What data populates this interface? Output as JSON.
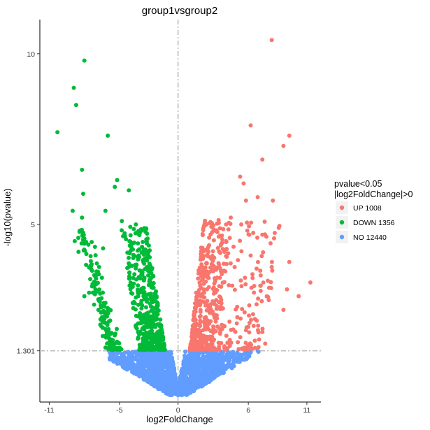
{
  "chart_data": {
    "type": "scatter",
    "title": "group1vsgroup2",
    "xlabel": "log2FoldChange",
    "ylabel": "-log10(pvalue)",
    "xlim": [
      -11.8,
      12.2
    ],
    "ylim": [
      -0.2,
      11.0
    ],
    "x_ticks": [
      -11,
      -5,
      0,
      6,
      11
    ],
    "y_ticks": [
      1.301,
      5,
      10
    ],
    "y_tick_labels": [
      "1.301",
      "5",
      "10"
    ],
    "threshold_lines": {
      "x": 0,
      "y": 1.301,
      "style": "dashdot",
      "color": "#bdbdbd"
    },
    "grid": false,
    "legend": {
      "title_line1": "pvalue<0.05",
      "title_line2": "|log2FoldChange|>0",
      "placement": "right",
      "entries": [
        {
          "label": "UP 1008",
          "color": "#F8766D"
        },
        {
          "label": "DOWN 1356",
          "color": "#00BA38"
        },
        {
          "label": "NO 12440",
          "color": "#619CFF"
        }
      ]
    },
    "series": [
      {
        "name": "UP 1008",
        "color": "#F8766D",
        "counts": 1008,
        "highlight_points": [
          [
            8.0,
            10.4
          ],
          [
            6.2,
            7.9
          ],
          [
            9.5,
            7.6
          ],
          [
            9.0,
            7.3
          ],
          [
            7.2,
            6.9
          ],
          [
            5.3,
            6.4
          ],
          [
            5.6,
            6.2
          ],
          [
            6.8,
            5.8
          ],
          [
            8.1,
            5.7
          ],
          [
            4.1,
            5.0
          ],
          [
            4.5,
            5.2
          ],
          [
            5.4,
            5.0
          ],
          [
            5.8,
            5.7
          ],
          [
            8.6,
            4.9
          ],
          [
            7.2,
            4.7
          ],
          [
            9.5,
            3.9
          ],
          [
            11.3,
            3.3
          ],
          [
            9.3,
            3.1
          ],
          [
            9.0,
            2.5
          ],
          [
            10.3,
            2.9
          ],
          [
            6.5,
            3.2
          ]
        ]
      },
      {
        "name": "DOWN 1356",
        "color": "#00BA38",
        "counts": 1356,
        "highlight_points": [
          [
            -8.0,
            9.8
          ],
          [
            -8.9,
            9.0
          ],
          [
            -8.7,
            8.5
          ],
          [
            -10.3,
            7.7
          ],
          [
            -6.0,
            7.6
          ],
          [
            -8.2,
            6.6
          ],
          [
            -5.2,
            6.3
          ],
          [
            -5.4,
            6.1
          ],
          [
            -4.2,
            6.0
          ],
          [
            -8.1,
            5.9
          ],
          [
            -8.2,
            5.2
          ],
          [
            -9.0,
            5.4
          ],
          [
            -6.2,
            5.4
          ],
          [
            -4.8,
            5.1
          ],
          [
            -3.6,
            5.0
          ],
          [
            -8.0,
            4.5
          ],
          [
            -8.5,
            4.2
          ],
          [
            -6.4,
            4.3
          ],
          [
            -7.5,
            3.4
          ],
          [
            -8.0,
            2.9
          ],
          [
            -6.8,
            2.5
          ],
          [
            -5.6,
            1.6
          ]
        ]
      },
      {
        "name": "NO 12440",
        "color": "#619CFF",
        "counts": 12440,
        "highlight_points": [
          [
            -5.9,
            1.3
          ],
          [
            -3.0,
            0.9
          ],
          [
            0.0,
            0.0
          ],
          [
            1.2,
            0.3
          ],
          [
            3.2,
            0.7
          ],
          [
            6.8,
            1.3
          ]
        ]
      }
    ]
  }
}
